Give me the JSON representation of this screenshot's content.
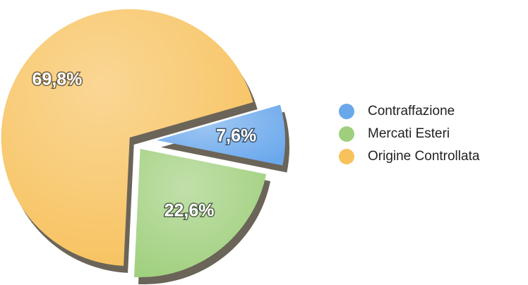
{
  "chart_data": {
    "type": "pie",
    "categories": [
      "Contraffazione",
      "Mercati Esteri",
      "Origine Controllata"
    ],
    "values": [
      7.6,
      22.6,
      69.8
    ],
    "value_labels": [
      "7,6%",
      "22,6%",
      "69,8%"
    ],
    "colors": [
      "#6aa8ec",
      "#9fcf7c",
      "#f7c15c"
    ],
    "legend": "right"
  }
}
